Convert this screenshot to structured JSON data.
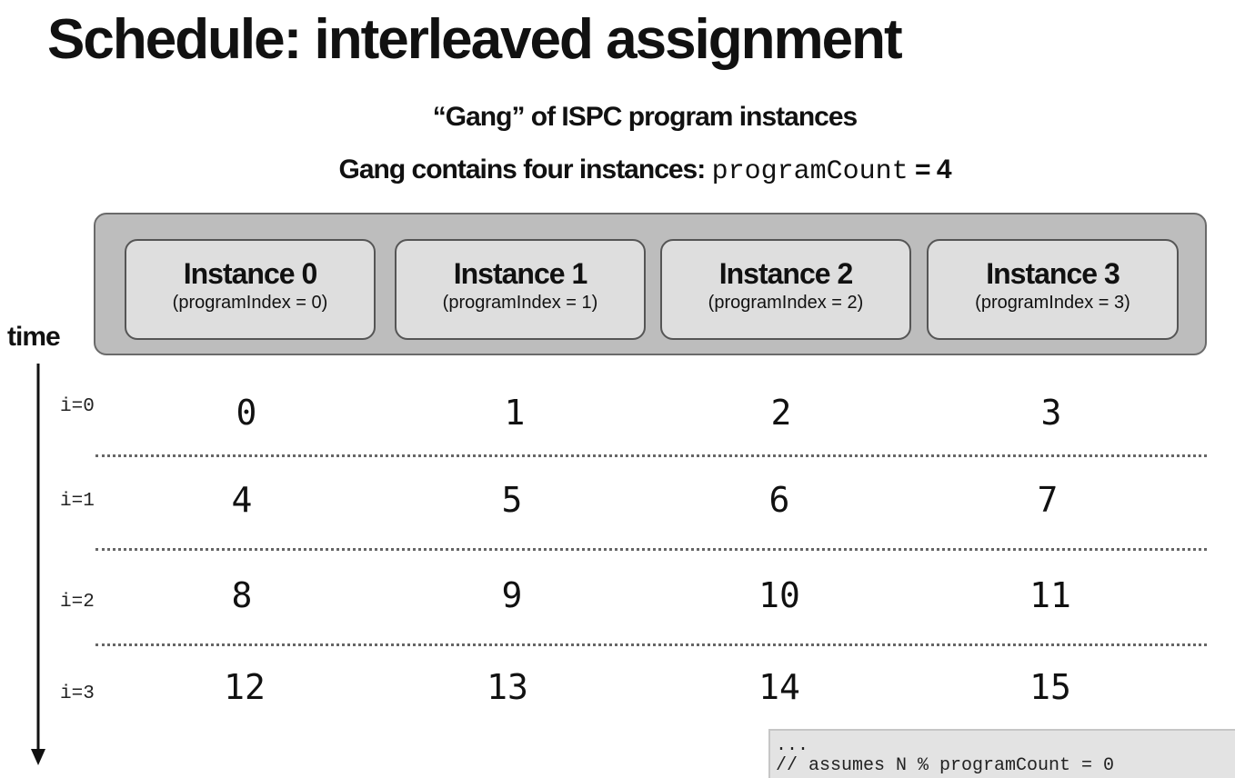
{
  "title": "Schedule: interleaved assignment",
  "subtitle1": "“Gang” of ISPC program instances",
  "subtitle2": {
    "prefix": "Gang contains four instances: ",
    "code": "programCount",
    "suffix": " = 4"
  },
  "instances": [
    {
      "name": "Instance 0",
      "index": "(programIndex = 0)"
    },
    {
      "name": "Instance 1",
      "index": "(programIndex = 1)"
    },
    {
      "name": "Instance 2",
      "index": "(programIndex = 2)"
    },
    {
      "name": "Instance 3",
      "index": "(programIndex = 3)"
    }
  ],
  "time_label": "time",
  "rows": [
    {
      "label": "i=0",
      "cells": [
        "0",
        "1",
        "2",
        "3"
      ]
    },
    {
      "label": "i=1",
      "cells": [
        "4",
        "5",
        "6",
        "7"
      ]
    },
    {
      "label": "i=2",
      "cells": [
        "8",
        "9",
        "10",
        "11"
      ]
    },
    {
      "label": "i=3",
      "cells": [
        "12",
        "13",
        "14",
        "15"
      ]
    }
  ],
  "code": {
    "line1": "...",
    "line2": "// assumes N % programCount = 0"
  },
  "colors": {
    "gang_bg": "#bdbdbd",
    "instance_bg": "#dedede",
    "code_bg": "#e3e3e3"
  }
}
